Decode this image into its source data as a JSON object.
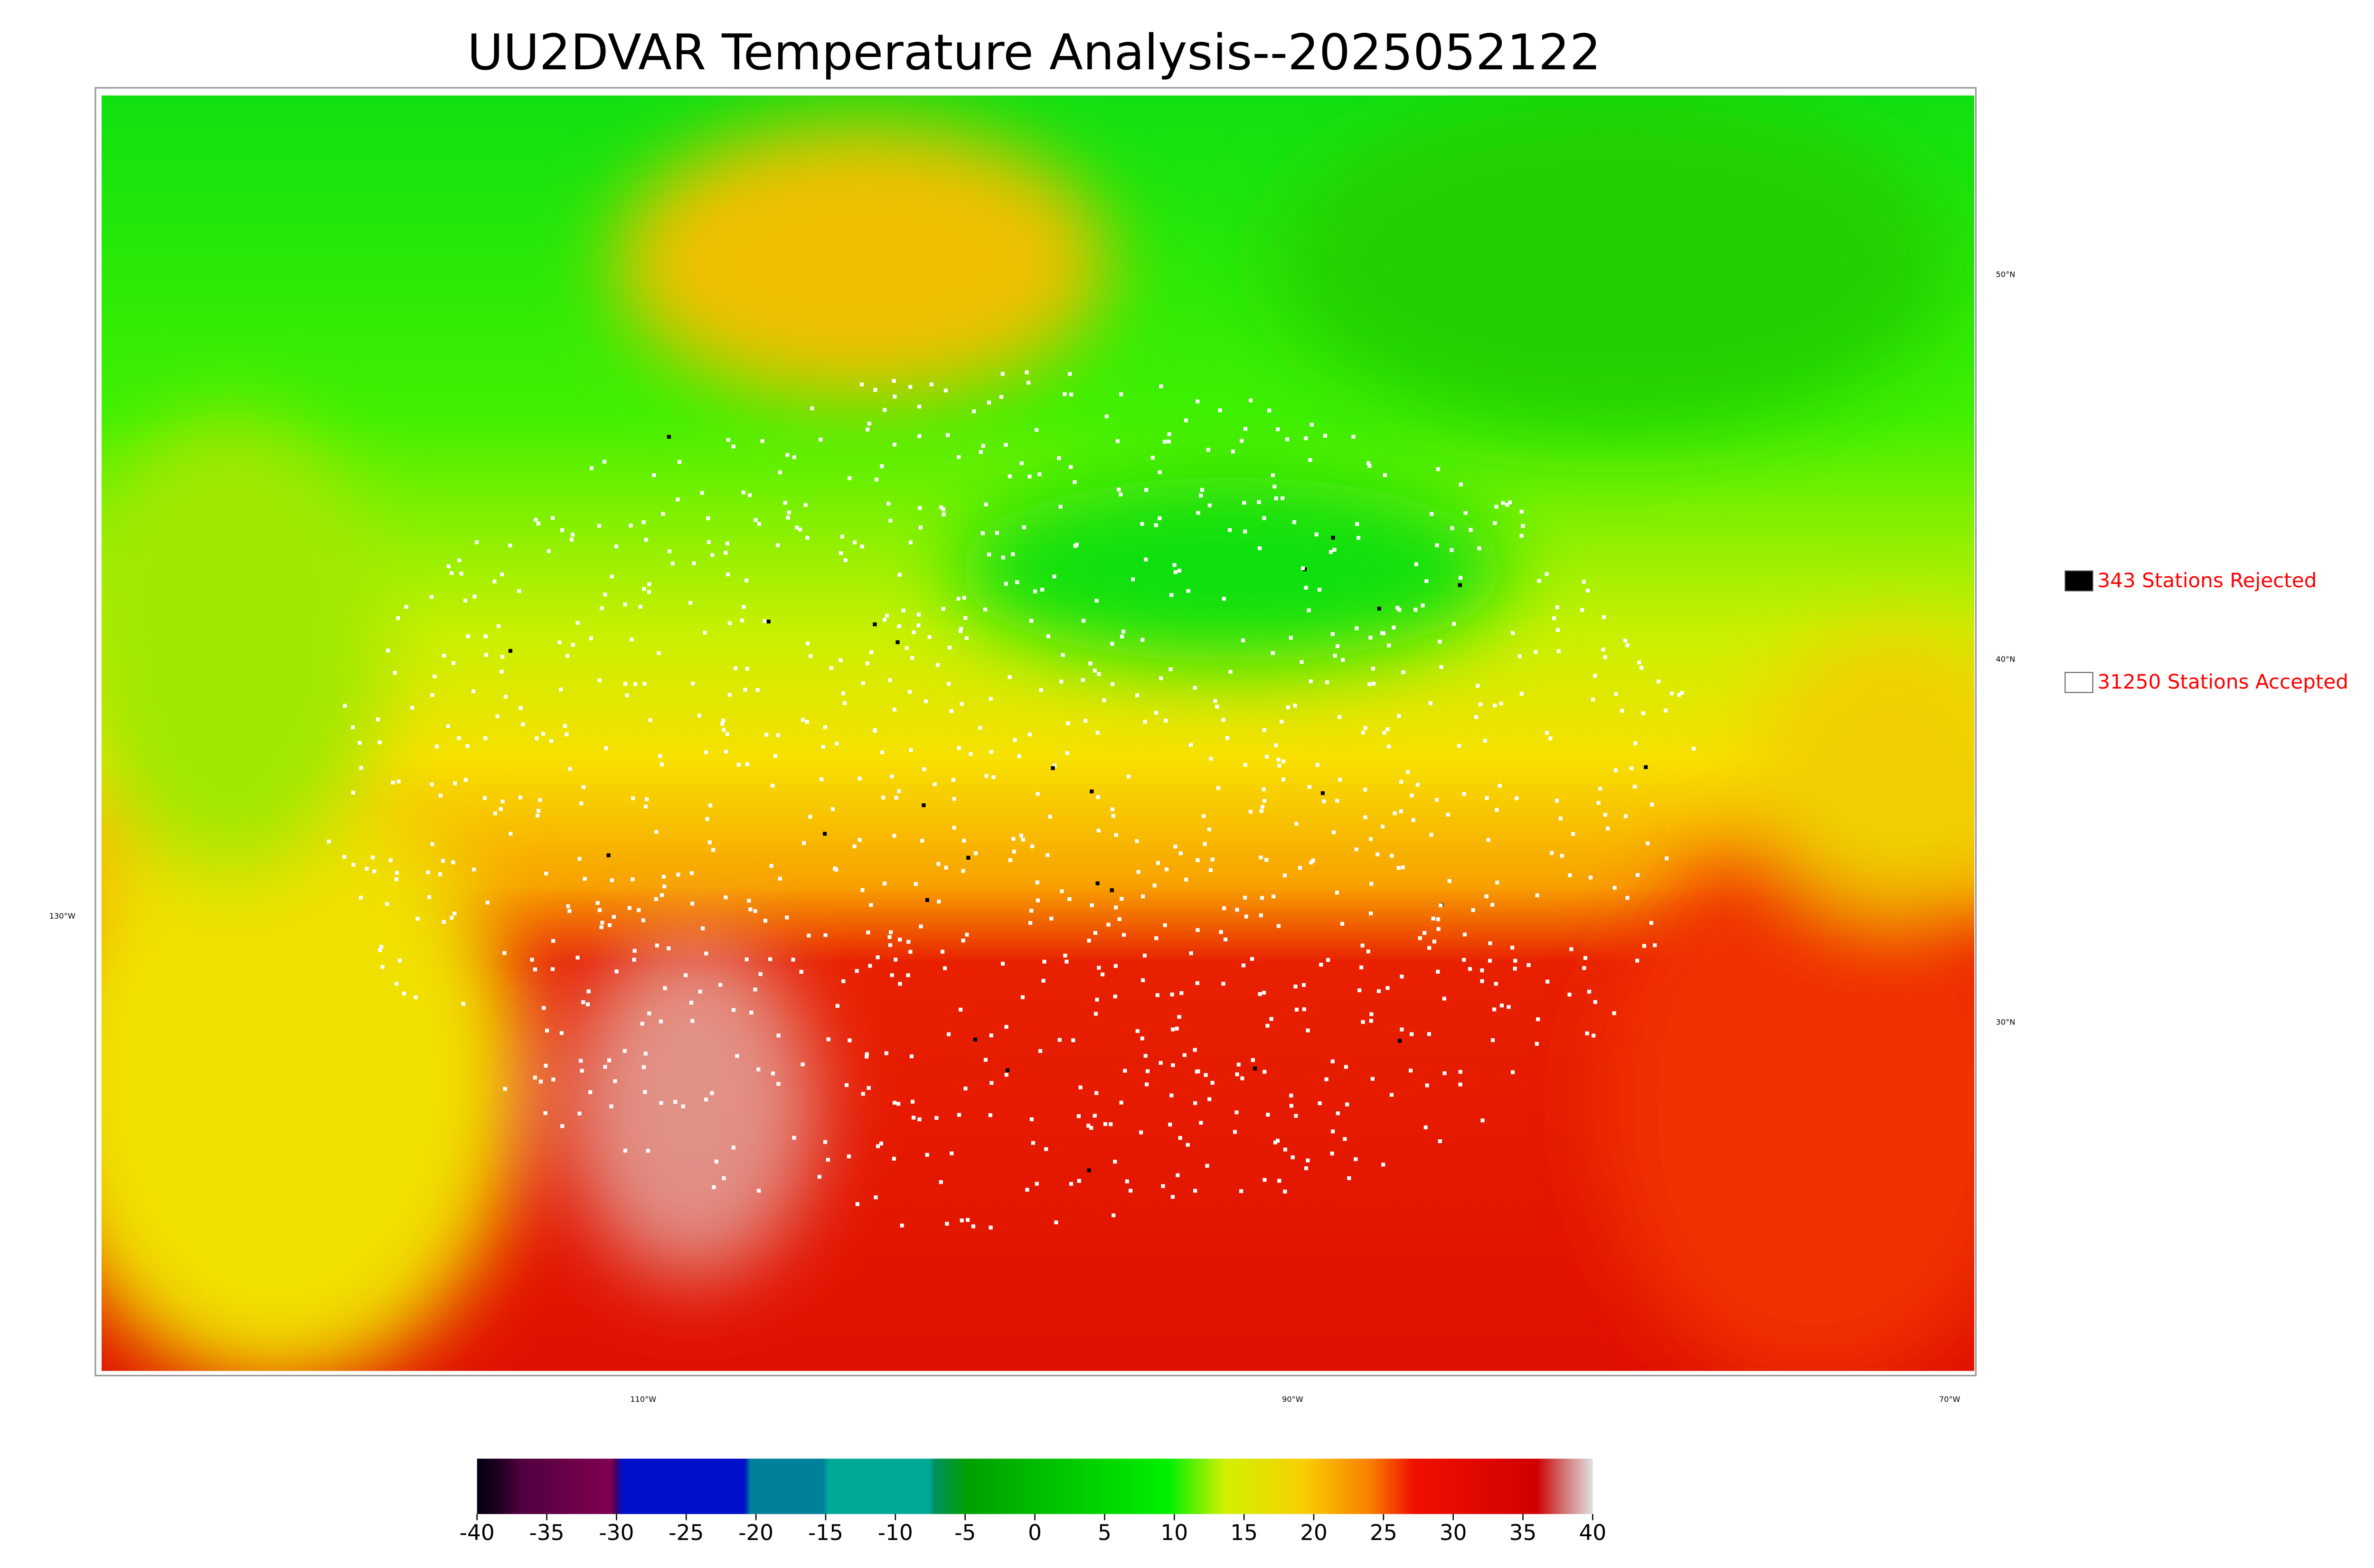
{
  "title": "UU2DVAR Temperature Analysis--2025052122",
  "legend": [
    {
      "label": "343 Stations Rejected",
      "color": "#000000"
    },
    {
      "label": "31250 Stations Accepted",
      "color": "#ffffff"
    }
  ],
  "lat_labels": [
    "50°N",
    "40°N",
    "30°N",
    "130°W"
  ],
  "lon_labels": [
    "110°W",
    "90°W",
    "70°W"
  ],
  "colorbar": {
    "lim": [
      -40,
      40
    ],
    "ticks": [
      -40,
      -35,
      -30,
      -25,
      -20,
      -15,
      -10,
      -5,
      0,
      5,
      10,
      15,
      20,
      25,
      30,
      35,
      40
    ]
  }
}
